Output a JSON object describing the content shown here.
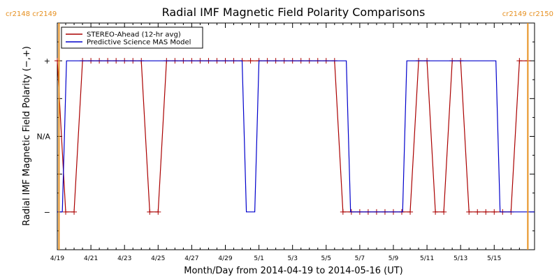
{
  "chart_data": {
    "type": "line",
    "title": "Radial IMF Magnetic Field Polarity Comparisons",
    "xlabel": "Month/Day from 2014-04-19 to 2014-05-16 (UT)",
    "ylabel": "Radial IMF Magnetic Field Polarity (−,+)",
    "xlim": [
      0,
      28.4
    ],
    "ylim": [
      -1.5,
      1.5
    ],
    "x_tick_labels": [
      "4/19",
      "4/21",
      "4/23",
      "4/25",
      "4/27",
      "4/29",
      "5/1",
      "5/3",
      "5/5",
      "5/7",
      "5/9",
      "5/11",
      "5/13",
      "5/15"
    ],
    "x_tick_values": [
      0,
      2,
      4,
      6,
      8,
      10,
      12,
      14,
      16,
      18,
      20,
      22,
      24,
      26
    ],
    "y_tick_labels": [
      "+",
      "N/A",
      "−"
    ],
    "y_tick_values": [
      1,
      0,
      -1
    ],
    "legend_position": "top-left",
    "carrington": [
      {
        "x": 0.1,
        "label": "cr2148 cr2149"
      },
      {
        "x": 28.0,
        "label": "cr2149 cr2150"
      }
    ],
    "series": [
      {
        "name": "STEREO-Ahead (12-hr avg)",
        "color": "#aa0000",
        "marker": "+",
        "points": [
          [
            0,
            1
          ],
          [
            0.5,
            -1
          ],
          [
            1,
            -1
          ],
          [
            1.5,
            1
          ],
          [
            2,
            1
          ],
          [
            2.5,
            1
          ],
          [
            3,
            1
          ],
          [
            3.5,
            1
          ],
          [
            4,
            1
          ],
          [
            4.5,
            1
          ],
          [
            5,
            1
          ],
          [
            5.5,
            -1
          ],
          [
            6,
            -1
          ],
          [
            6.5,
            1
          ],
          [
            7,
            1
          ],
          [
            7.5,
            1
          ],
          [
            8,
            1
          ],
          [
            8.5,
            1
          ],
          [
            9,
            1
          ],
          [
            9.5,
            1
          ],
          [
            10,
            1
          ],
          [
            10.5,
            1
          ],
          [
            11,
            1
          ],
          [
            11.5,
            1
          ],
          [
            12,
            1
          ],
          [
            12.5,
            1
          ],
          [
            13,
            1
          ],
          [
            13.5,
            1
          ],
          [
            14,
            1
          ],
          [
            14.5,
            1
          ],
          [
            15,
            1
          ],
          [
            15.5,
            1
          ],
          [
            16,
            1
          ],
          [
            16.5,
            1
          ],
          [
            17,
            -1
          ],
          [
            17.5,
            -1
          ],
          [
            18,
            -1
          ],
          [
            18.5,
            -1
          ],
          [
            19,
            -1
          ],
          [
            19.5,
            -1
          ],
          [
            20,
            -1
          ],
          [
            20.5,
            -1
          ],
          [
            21,
            -1
          ],
          [
            21.5,
            1
          ],
          [
            22,
            1
          ],
          [
            22.5,
            -1
          ],
          [
            23,
            -1
          ],
          [
            23.5,
            1
          ],
          [
            24,
            1
          ],
          [
            24.5,
            -1
          ],
          [
            25,
            -1
          ],
          [
            25.5,
            -1
          ],
          [
            26,
            -1
          ],
          [
            26.5,
            -1
          ],
          [
            27,
            -1
          ],
          [
            27.5,
            1
          ],
          [
            28,
            1
          ]
        ]
      },
      {
        "name": "Predictive Science MAS Model",
        "color": "#0000cc",
        "marker": "",
        "points": [
          [
            0,
            -1
          ],
          [
            0.3,
            -1
          ],
          [
            0.55,
            1
          ],
          [
            11,
            1
          ],
          [
            11.25,
            -1
          ],
          [
            11.75,
            -1
          ],
          [
            12,
            1
          ],
          [
            17.2,
            1
          ],
          [
            17.45,
            -1
          ],
          [
            20.55,
            -1
          ],
          [
            20.8,
            1
          ],
          [
            26.1,
            1
          ],
          [
            26.35,
            -1
          ],
          [
            28.4,
            -1
          ]
        ]
      }
    ]
  }
}
